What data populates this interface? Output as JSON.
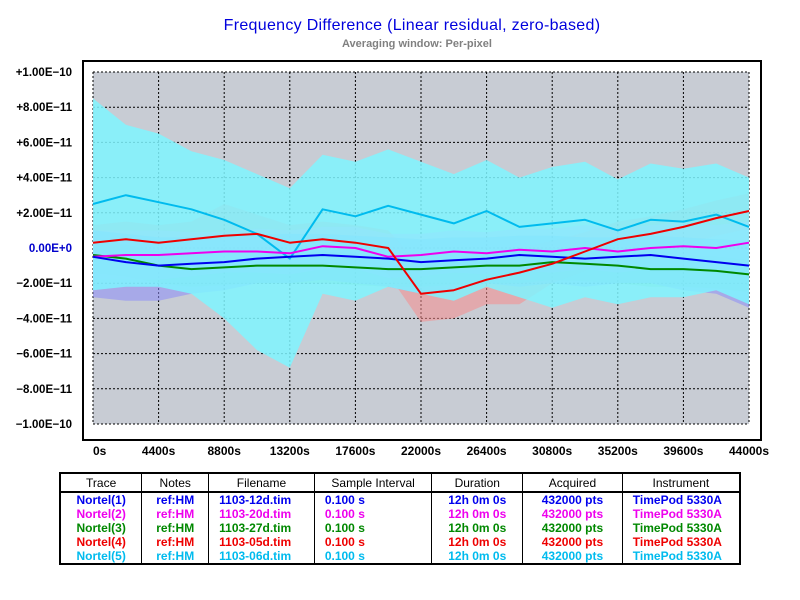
{
  "chart_data": {
    "type": "line",
    "title": "Frequency Difference  (Linear residual,  zero-based)",
    "subtitle": "Averaging window: Per-pixel",
    "xlabel": "",
    "ylabel": "",
    "xlim": [
      0,
      44000
    ],
    "ylim": [
      -1e-10,
      1e-10
    ],
    "x_ticks": [
      "0s",
      "4400s",
      "8800s",
      "13200s",
      "17600s",
      "22000s",
      "26400s",
      "30800s",
      "35200s",
      "39600s",
      "44000s"
    ],
    "y_ticks": [
      "+1.00E−10",
      "+8.00E−11",
      "+6.00E−11",
      "+4.00E−11",
      "+2.00E−11",
      "0.00E+0",
      "−2.00E−11",
      "−4.00E−11",
      "−6.00E−11",
      "−8.00E−11",
      "−1.00E−10"
    ],
    "grid": true,
    "plot_background": "#c8ccd4",
    "zero_label_color": "#0000cc",
    "x": [
      0,
      2200,
      4400,
      6600,
      8800,
      11000,
      13200,
      15400,
      17600,
      19800,
      22000,
      24200,
      26400,
      28600,
      30800,
      33000,
      35200,
      37400,
      39600,
      41800,
      44000
    ],
    "series": [
      {
        "name": "Nortel(1)",
        "color": "#0000ee",
        "values": [
          -5e-12,
          -8e-12,
          -1e-11,
          -9e-12,
          -8e-12,
          -6e-12,
          -5e-12,
          -4e-12,
          -5e-12,
          -6e-12,
          -8e-12,
          -7e-12,
          -6e-12,
          -4e-12,
          -5e-12,
          -6e-12,
          -5e-12,
          -4e-12,
          -6e-12,
          -8e-12,
          -1e-11
        ],
        "spread_high": [
          1e-11,
          8e-12,
          6e-12,
          6e-12,
          6e-12,
          8e-12,
          8e-12,
          8e-12,
          7e-12,
          6e-12,
          5e-12,
          6e-12,
          6e-12,
          7e-12,
          7e-12,
          6e-12,
          6e-12,
          7e-12,
          6e-12,
          5e-12,
          4e-12
        ],
        "spread_low": [
          -2.8e-11,
          -3e-11,
          -3e-11,
          -2.6e-11,
          -2.4e-11,
          -2e-11,
          -2e-11,
          -1.8e-11,
          -2e-11,
          -2.2e-11,
          -2.6e-11,
          -2.4e-11,
          -2e-11,
          -2.2e-11,
          -2e-11,
          -2.2e-11,
          -2e-11,
          -2e-11,
          -2.4e-11,
          -2.6e-11,
          -3.4e-11
        ]
      },
      {
        "name": "Nortel(2)",
        "color": "#ee00ee",
        "values": [
          -5e-12,
          -4e-12,
          -4e-12,
          -3e-12,
          -2e-12,
          -2e-12,
          -3e-12,
          1e-12,
          0.0,
          -5e-12,
          -4e-12,
          -2e-12,
          -3e-12,
          -1e-12,
          -2e-12,
          0.0,
          -2e-12,
          0.0,
          1e-12,
          0.0,
          3e-12
        ],
        "spread_high": [
          1e-11,
          1e-11,
          1e-11,
          9e-12,
          9e-12,
          1.1e-11,
          1e-11,
          1.2e-11,
          1.2e-11,
          8e-12,
          8e-12,
          1e-11,
          9e-12,
          1.1e-11,
          1.1e-11,
          1.3e-11,
          1.1e-11,
          1.3e-11,
          1.4e-11,
          1.3e-11,
          1.5e-11
        ],
        "spread_low": [
          -1.8e-11,
          -1.8e-11,
          -1.8e-11,
          -1.6e-11,
          -1.4e-11,
          -1.4e-11,
          -1.5e-11,
          -1.2e-11,
          -1.2e-11,
          -1.7e-11,
          -1.6e-11,
          -1.4e-11,
          -1.5e-11,
          -1.3e-11,
          -1.4e-11,
          -1.2e-11,
          -1.4e-11,
          -1.2e-11,
          -1e-11,
          -1.2e-11,
          -9e-12
        ]
      },
      {
        "name": "Nortel(3)",
        "color": "#008800",
        "values": [
          -4e-12,
          -6e-12,
          -1e-11,
          -1.2e-11,
          -1.1e-11,
          -1e-11,
          -1e-11,
          -1e-11,
          -1.1e-11,
          -1.2e-11,
          -1.2e-11,
          -1.1e-11,
          -1e-11,
          -1e-11,
          -8e-12,
          -9e-12,
          -1e-11,
          -1.2e-11,
          -1.2e-11,
          -1.3e-11,
          -1.5e-11
        ],
        "spread_high": [
          4e-12,
          2e-12,
          -2e-12,
          -4e-12,
          -3e-12,
          -2e-12,
          -2e-12,
          -2e-12,
          -3e-12,
          -4e-12,
          -4e-12,
          -3e-12,
          -2e-12,
          -2e-12,
          0.0,
          -1e-12,
          -2e-12,
          -4e-12,
          -4e-12,
          -5e-12,
          -7e-12
        ],
        "spread_low": [
          -1.4e-11,
          -1.6e-11,
          -2e-11,
          -2.2e-11,
          -2.1e-11,
          -2e-11,
          -2e-11,
          -2e-11,
          -2.1e-11,
          -2.2e-11,
          -2.2e-11,
          -2.1e-11,
          -2e-11,
          -2e-11,
          -1.8e-11,
          -1.9e-11,
          -2e-11,
          -2.2e-11,
          -2.2e-11,
          -2.3e-11,
          -2.5e-11
        ]
      },
      {
        "name": "Nortel(4)",
        "color": "#ee0000",
        "values": [
          3e-12,
          5e-12,
          3e-12,
          5e-12,
          7e-12,
          8e-12,
          3e-12,
          5e-12,
          3e-12,
          0.0,
          -2.6e-11,
          -2.4e-11,
          -1.8e-11,
          -1.4e-11,
          -9e-12,
          -2e-12,
          5e-12,
          8e-12,
          1.2e-11,
          1.7e-11,
          2.1e-11
        ],
        "spread_high": [
          1.3e-11,
          1.5e-11,
          1.3e-11,
          1.5e-11,
          2.5e-11,
          1.9e-11,
          1.3e-11,
          1.5e-11,
          1.3e-11,
          1e-11,
          -1e-11,
          -6e-12,
          -2e-12,
          0.0,
          4e-12,
          9e-12,
          1.5e-11,
          1.8e-11,
          2.2e-11,
          2.7e-11,
          3.1e-11
        ],
        "spread_low": [
          -7e-12,
          -5e-12,
          -7e-12,
          -5e-12,
          -3e-12,
          -2e-12,
          -7e-12,
          -5e-12,
          -7e-12,
          -1.5e-11,
          -4.2e-11,
          -4e-11,
          -3.2e-11,
          -3.2e-11,
          -2e-11,
          -1.3e-11,
          -5e-12,
          -2e-12,
          2e-12,
          7e-12,
          1.1e-11
        ]
      },
      {
        "name": "Nortel(5)",
        "color": "#00bbee",
        "values": [
          2.5e-11,
          3e-11,
          2.6e-11,
          2.2e-11,
          1.6e-11,
          8e-12,
          -6e-12,
          2.2e-11,
          1.8e-11,
          2.4e-11,
          1.9e-11,
          1.4e-11,
          2.1e-11,
          1.2e-11,
          1.4e-11,
          1.6e-11,
          1e-11,
          1.6e-11,
          1.5e-11,
          1.9e-11,
          1.2e-11
        ],
        "spread_high": [
          8.5e-11,
          7e-11,
          6.5e-11,
          5.5e-11,
          5e-11,
          4.2e-11,
          3.4e-11,
          5.3e-11,
          4.9e-11,
          5.6e-11,
          4.9e-11,
          4.2e-11,
          5e-11,
          4e-11,
          4.6e-11,
          4.9e-11,
          3.9e-11,
          4.8e-11,
          4.5e-11,
          4.8e-11,
          4e-11
        ],
        "spread_low": [
          -2.4e-11,
          -2.2e-11,
          -2.2e-11,
          -2.6e-11,
          -4e-11,
          -5.8e-11,
          -6.8e-11,
          -2.6e-11,
          -3e-11,
          -2.2e-11,
          -2.6e-11,
          -3e-11,
          -2.2e-11,
          -2.8e-11,
          -3.4e-11,
          -2.8e-11,
          -3.2e-11,
          -2.8e-11,
          -2.8e-11,
          -2.4e-11,
          -3.2e-11
        ]
      }
    ]
  },
  "table": {
    "headers": [
      "Trace",
      "Notes",
      "Filename",
      "Sample Interval",
      "Duration",
      "Acquired",
      "Instrument"
    ],
    "rows": [
      {
        "color": "#0000ee",
        "cells": [
          "Nortel(1)",
          "ref:HM",
          "1103-12d.tim",
          "0.100 s",
          "12h 0m 0s",
          "432000 pts",
          "TimePod 5330A"
        ]
      },
      {
        "color": "#ee00ee",
        "cells": [
          "Nortel(2)",
          "ref:HM",
          "1103-20d.tim",
          "0.100 s",
          "12h 0m 0s",
          "432000 pts",
          "TimePod 5330A"
        ]
      },
      {
        "color": "#008800",
        "cells": [
          "Nortel(3)",
          "ref:HM",
          "1103-27d.tim",
          "0.100 s",
          "12h 0m 0s",
          "432000 pts",
          "TimePod 5330A"
        ]
      },
      {
        "color": "#ee0000",
        "cells": [
          "Nortel(4)",
          "ref:HM",
          "1103-05d.tim",
          "0.100 s",
          "12h 0m 0s",
          "432000 pts",
          "TimePod 5330A"
        ]
      },
      {
        "color": "#00bbee",
        "cells": [
          "Nortel(5)",
          "ref:HM",
          "1103-06d.tim",
          "0.100 s",
          "12h 0m 0s",
          "432000 pts",
          "TimePod 5330A"
        ]
      }
    ]
  }
}
